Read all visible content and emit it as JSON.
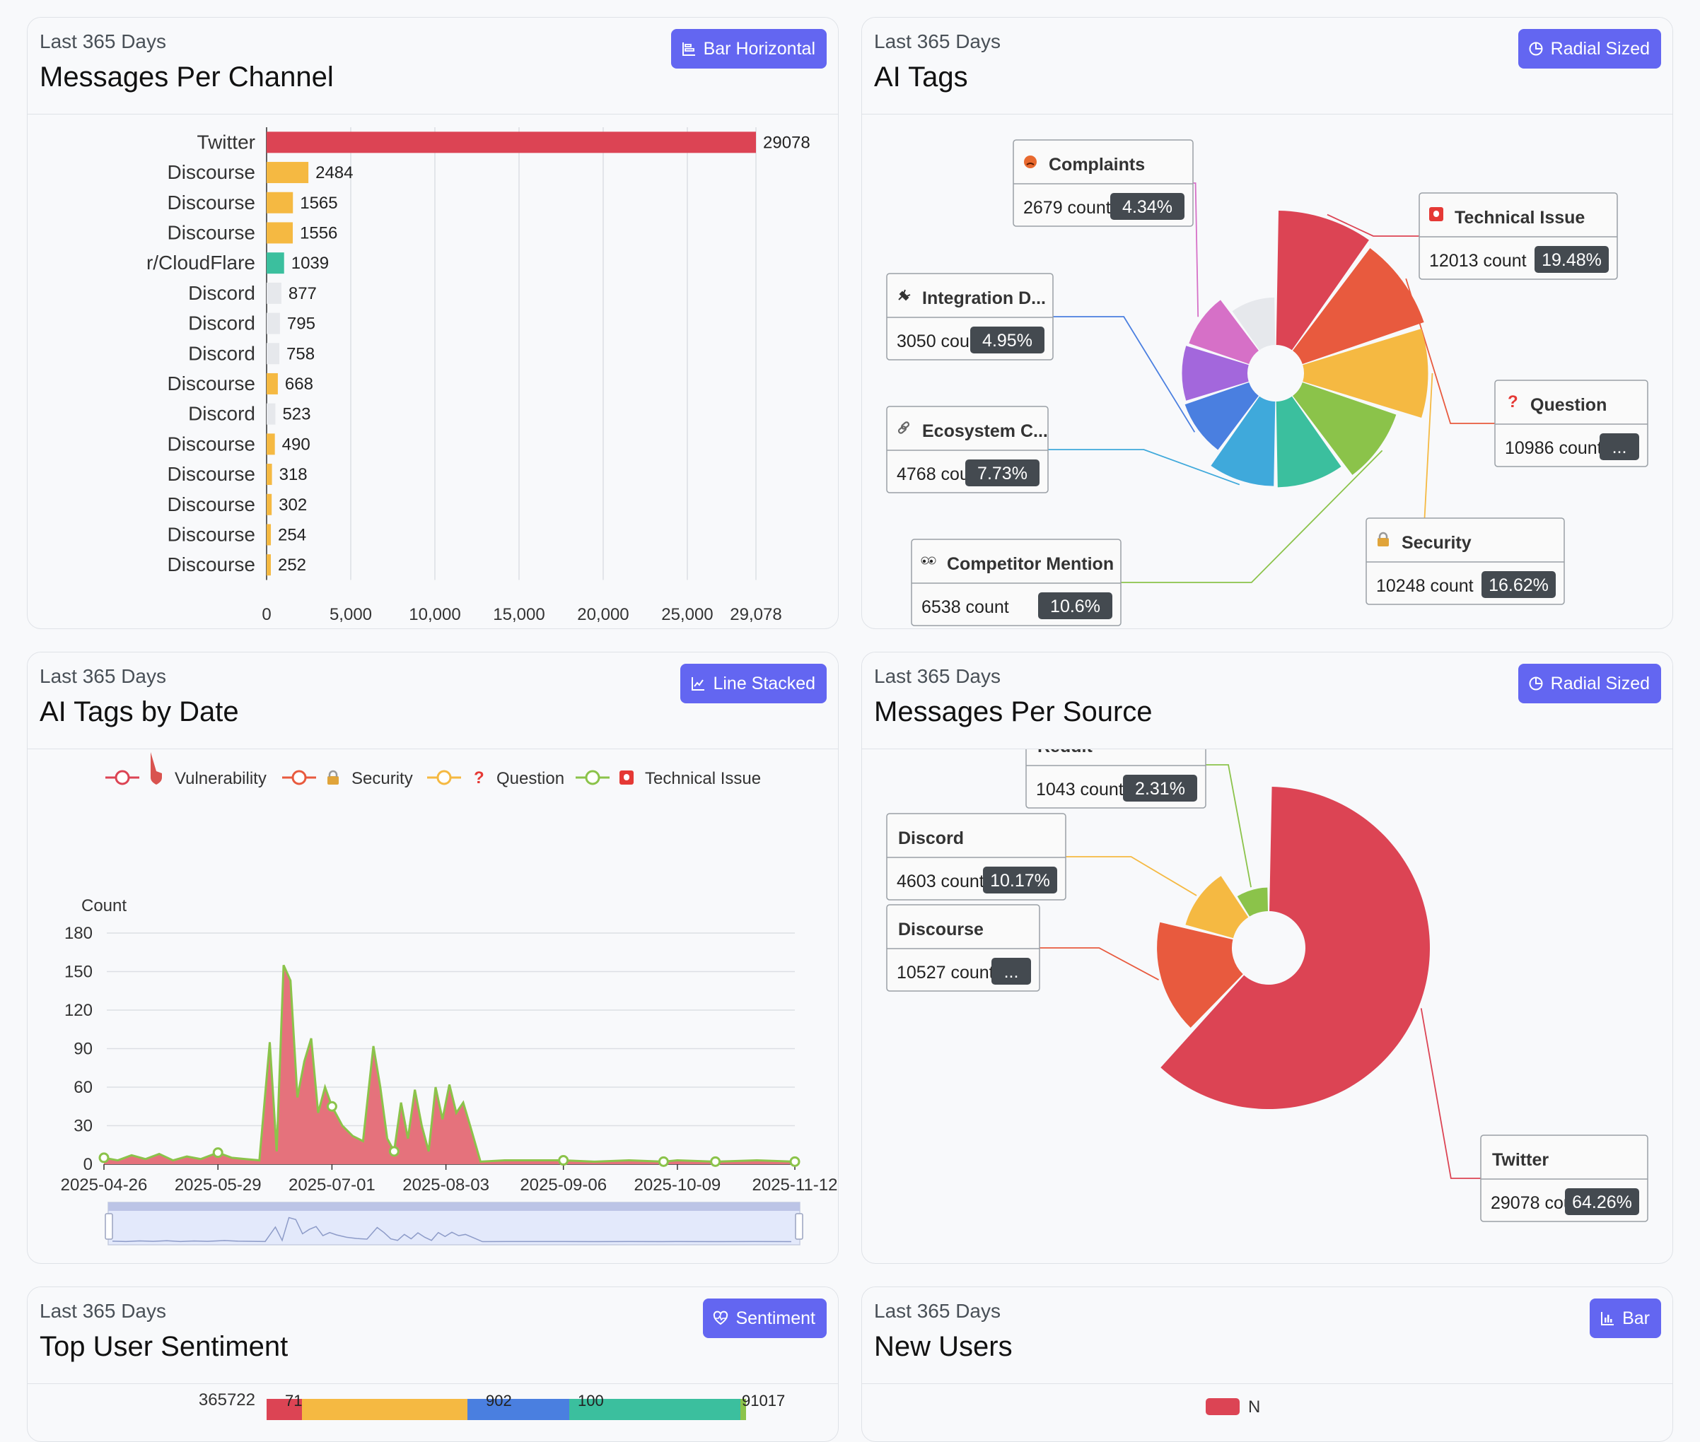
{
  "cards": {
    "messages_per_channel": {
      "subtitle": "Last 365 Days",
      "title": "Messages Per Channel",
      "button_label": "Bar Horizontal",
      "button_icon": "bar-horizontal-icon"
    },
    "ai_tags": {
      "subtitle": "Last 365 Days",
      "title": "AI Tags",
      "button_label": "Radial Sized",
      "button_icon": "pie-icon"
    },
    "ai_tags_by_date": {
      "subtitle": "Last 365 Days",
      "title": "AI Tags by Date",
      "button_label": "Line Stacked",
      "button_icon": "line-chart-icon"
    },
    "messages_per_source": {
      "subtitle": "Last 365 Days",
      "title": "Messages Per Source",
      "button_label": "Radial Sized",
      "button_icon": "pie-icon"
    },
    "top_user_sentiment": {
      "subtitle": "Last 365 Days",
      "title": "Top User Sentiment",
      "button_label": "Sentiment",
      "button_icon": "heart-pulse-icon"
    },
    "new_users": {
      "subtitle": "Last 365 Days",
      "title": "New Users",
      "button_label": "Bar",
      "button_icon": "bar-chart-icon"
    }
  },
  "colors": {
    "accent": "#6366f1",
    "red": "#dc4454",
    "orange_red": "#e85a3e",
    "yellow": "#f5b942",
    "teal": "#3bbf9e",
    "green": "#8bc34a",
    "light_gray": "#e6e8ec",
    "blue": "#3fa9db",
    "mid_blue": "#4a7fe0",
    "purple": "#a367dc",
    "pink": "#d670c7"
  },
  "chart_data": [
    {
      "type": "bar",
      "orientation": "horizontal",
      "categories": [
        "Twitter",
        "Discourse",
        "Discourse",
        "Discourse",
        "r/CloudFlare",
        "Discord",
        "Discord",
        "Discord",
        "Discourse",
        "Discord",
        "Discourse",
        "Discourse",
        "Discourse",
        "Discourse",
        "Discourse"
      ],
      "values": [
        29078,
        2484,
        1565,
        1556,
        1039,
        877,
        795,
        758,
        668,
        523,
        490,
        318,
        302,
        254,
        252
      ],
      "value_labels": [
        "29078",
        "2484",
        "1565",
        "1556",
        "1039",
        "877",
        "795",
        "758",
        "668",
        "523",
        "490",
        "318",
        "302",
        "254",
        "252"
      ],
      "bar_colors": [
        "#dc4454",
        "#f5b942",
        "#f5b942",
        "#f5b942",
        "#3bbf9e",
        "#e6e8ec",
        "#e6e8ec",
        "#e6e8ec",
        "#f5b942",
        "#e6e8ec",
        "#f5b942",
        "#f5b942",
        "#f5b942",
        "#f5b942",
        "#f5b942"
      ],
      "xticks": [
        "0",
        "5,000",
        "10,000",
        "15,000",
        "20,000",
        "25,000",
        "29,078"
      ],
      "xtick_values": [
        0,
        5000,
        10000,
        15000,
        20000,
        25000,
        29078
      ],
      "xlim": [
        0,
        29078
      ],
      "grid": true
    },
    {
      "type": "pie",
      "variant": "rose",
      "slices": [
        {
          "name": "Technical Issue",
          "icon": "alarm-icon",
          "count_label": "12013 count",
          "percent_label": "19.48%",
          "value": 12013,
          "color": "#dc4454"
        },
        {
          "name": "Question",
          "icon": "question-icon",
          "count_label": "10986 count",
          "percent_label": "...",
          "value": 10986,
          "color": "#e85a3e"
        },
        {
          "name": "Security",
          "icon": "lock-icon",
          "count_label": "10248 count",
          "percent_label": "16.62%",
          "value": 10248,
          "color": "#f5b942"
        },
        {
          "name": "Competitor Mention",
          "icon": "eyes-icon",
          "count_label": "6538 count",
          "percent_label": "10.6%",
          "value": 6538,
          "color": "#8bc34a"
        },
        {
          "name": "",
          "value": 4900,
          "color": "#3bbf9e"
        },
        {
          "name": "Ecosystem C...",
          "icon": "link-icon",
          "count_label": "4768 count",
          "percent_label": "7.73%",
          "value": 4768,
          "color": "#3fa9db"
        },
        {
          "name": "Integration D...",
          "icon": "plug-icon",
          "count_label": "3050 count",
          "percent_label": "4.95%",
          "value": 3050,
          "color": "#4a7fe0"
        },
        {
          "name": "",
          "value": 2850,
          "color": "#a367dc"
        },
        {
          "name": "Complaints",
          "icon": "angry-face-icon",
          "count_label": "2679 count",
          "percent_label": "4.34%",
          "value": 2679,
          "color": "#d670c7"
        },
        {
          "name": "",
          "value": 1500,
          "color": "#e6e8ec"
        }
      ]
    },
    {
      "type": "area",
      "stacked": true,
      "legend": [
        {
          "name": "Vulnerability",
          "icon": "shield-icon",
          "color": "#dc4454"
        },
        {
          "name": "Security",
          "icon": "lock-icon",
          "color": "#e85a3e"
        },
        {
          "name": "Question",
          "icon": "question-icon",
          "color": "#f5b942"
        },
        {
          "name": "Technical Issue",
          "icon": "alarm-icon",
          "color": "#8bc34a"
        }
      ],
      "legend_position": "top",
      "ylabel": "Count",
      "ylim": [
        0,
        180
      ],
      "yticks": [
        "0",
        "30",
        "60",
        "90",
        "120",
        "150",
        "180"
      ],
      "xticks": [
        "2025-04-26",
        "2025-05-29",
        "2025-07-01",
        "2025-08-03",
        "2025-09-06",
        "2025-10-09",
        "2025-11-12"
      ],
      "x_start": "2025-04-26",
      "x_end": "2025-11-12",
      "grid": true,
      "data_zoom": true,
      "total_points": [
        [
          "2025-04-26",
          5
        ],
        [
          "2025-04-30",
          3
        ],
        [
          "2025-05-04",
          7
        ],
        [
          "2025-05-08",
          4
        ],
        [
          "2025-05-12",
          8
        ],
        [
          "2025-05-16",
          3
        ],
        [
          "2025-05-20",
          6
        ],
        [
          "2025-05-24",
          4
        ],
        [
          "2025-05-29",
          9
        ],
        [
          "2025-06-02",
          5
        ],
        [
          "2025-06-06",
          4
        ],
        [
          "2025-06-10",
          3
        ],
        [
          "2025-06-13",
          95
        ],
        [
          "2025-06-15",
          10
        ],
        [
          "2025-06-17",
          155
        ],
        [
          "2025-06-19",
          143
        ],
        [
          "2025-06-21",
          52
        ],
        [
          "2025-06-23",
          80
        ],
        [
          "2025-06-25",
          98
        ],
        [
          "2025-06-27",
          40
        ],
        [
          "2025-06-29",
          60
        ],
        [
          "2025-07-01",
          45
        ],
        [
          "2025-07-04",
          30
        ],
        [
          "2025-07-07",
          22
        ],
        [
          "2025-07-10",
          18
        ],
        [
          "2025-07-13",
          92
        ],
        [
          "2025-07-15",
          60
        ],
        [
          "2025-07-17",
          20
        ],
        [
          "2025-07-19",
          10
        ],
        [
          "2025-07-21",
          48
        ],
        [
          "2025-07-23",
          20
        ],
        [
          "2025-07-25",
          58
        ],
        [
          "2025-07-27",
          30
        ],
        [
          "2025-07-29",
          10
        ],
        [
          "2025-07-31",
          60
        ],
        [
          "2025-08-02",
          35
        ],
        [
          "2025-08-04",
          62
        ],
        [
          "2025-08-06",
          40
        ],
        [
          "2025-08-08",
          48
        ],
        [
          "2025-08-10",
          30
        ],
        [
          "2025-08-13",
          2
        ],
        [
          "2025-08-20",
          3
        ],
        [
          "2025-09-06",
          3
        ],
        [
          "2025-09-15",
          2
        ],
        [
          "2025-09-25",
          3
        ],
        [
          "2025-10-05",
          2
        ],
        [
          "2025-10-09",
          3
        ],
        [
          "2025-10-20",
          2
        ],
        [
          "2025-11-01",
          3
        ],
        [
          "2025-11-12",
          2
        ]
      ]
    },
    {
      "type": "pie",
      "variant": "rose",
      "slices": [
        {
          "name": "Twitter",
          "count_label": "29078 count",
          "percent_label": "64.26%",
          "value": 29078,
          "color": "#dc4454"
        },
        {
          "name": "Discourse",
          "count_label": "10527 count",
          "percent_label": "...",
          "value": 10527,
          "color": "#e85a3e"
        },
        {
          "name": "Discord",
          "count_label": "4603 count",
          "percent_label": "10.17%",
          "value": 4603,
          "color": "#f5b942"
        },
        {
          "name": "Reddit",
          "count_label": "1043 count",
          "percent_label": "2.31%",
          "value": 1043,
          "color": "#8bc34a"
        }
      ]
    },
    {
      "type": "bar",
      "stacked": true,
      "orientation": "horizontal",
      "categories": [
        "365722"
      ],
      "segment_labels": [
        "71",
        "902",
        "100",
        "91017"
      ]
    },
    {
      "type": "bar",
      "legend_visible_fragment": "N"
    }
  ],
  "new_users_legend_text": "N"
}
